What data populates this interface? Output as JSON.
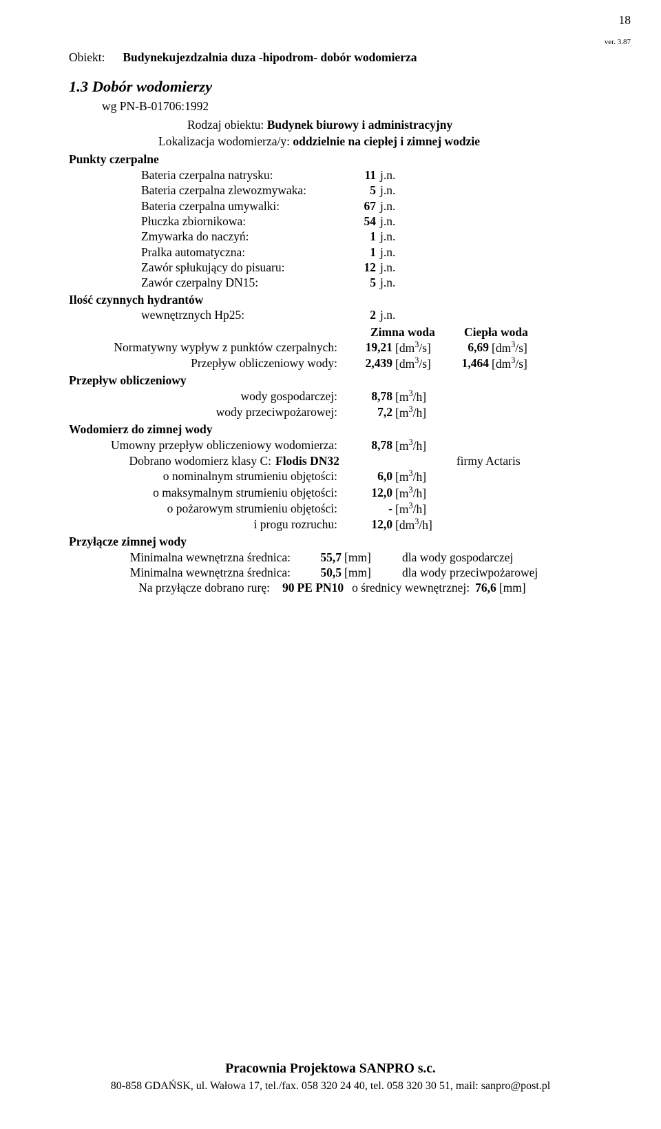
{
  "page_number": "18",
  "ver": "ver. 3.87",
  "objekt_label": "Obiekt:",
  "objekt_name": "Budynekujezdzalnia duza -hipodrom- dobór wodomierza",
  "section_title": "1.3 Dobór wodomierzy",
  "wg": "wg PN-B-01706:1992",
  "rodzaj_label": "Rodzaj obiektu:",
  "rodzaj_value": "Budynek biurowy i administracyjny",
  "lokal_label": "Lokalizacja wodomierza/y:",
  "lokal_value": "oddzielnie na ciepłej i zimnej wodzie",
  "punkty_title": "Punkty czerpalne",
  "pc": [
    {
      "label": "Bateria czerpalna natrysku:",
      "val": "11",
      "unit": "j.n."
    },
    {
      "label": "Bateria czerpalna zlewozmywaka:",
      "val": "5",
      "unit": "j.n."
    },
    {
      "label": "Bateria czerpalna umywalki:",
      "val": "67",
      "unit": "j.n."
    },
    {
      "label": "Płuczka zbiornikowa:",
      "val": "54",
      "unit": "j.n."
    },
    {
      "label": "Zmywarka do naczyń:",
      "val": "1",
      "unit": "j.n."
    },
    {
      "label": "Pralka automatyczna:",
      "val": "1",
      "unit": "j.n."
    },
    {
      "label": "Zawór spłukujący do pisuaru:",
      "val": "12",
      "unit": "j.n."
    },
    {
      "label": "Zawór czerpalny DN15:",
      "val": "5",
      "unit": "j.n."
    }
  ],
  "hydrant_title": "Ilość czynnych hydrantów",
  "hydrant_label": "wewnętrznych Hp25:",
  "hydrant_val": "2",
  "zimna": "Zimna woda",
  "ciepla": "Ciepła woda",
  "norm_label": "Normatywny wypływ z punktów czerpalnych:",
  "norm_z": "19,21",
  "norm_c": "6,69",
  "przep_label": "Przepływ obliczeniowy wody:",
  "przep_z": "2,439",
  "przep_c": "1,464",
  "unit_dm3s": "[dm³/s]",
  "po_title": "Przepływ obliczeniowy",
  "gosp_label": "wody gospodarczej:",
  "gosp_val": "8,78",
  "ppoz_label": "wody przeciwpożarowej:",
  "ppoz_val": "7,2",
  "unit_m3h": "[m³/h]",
  "wodz_title": "Wodomierz do zimnej wody",
  "umow_label": "Umowny przepływ obliczeniowy wodomierza:",
  "umow_val": "8,78",
  "dobr_label": "Dobrano wodomierz klasy C:",
  "dobr_class": "Flodis DN32",
  "dobr_firm": "firmy Actaris",
  "nom_label": "o nominalnym strumieniu objętości:",
  "nom_val": "6,0",
  "max_label": "o maksymalnym strumieniu objętości:",
  "max_val": "12,0",
  "poz_label": "o pożarowym strumieniu objętości:",
  "poz_val": "-",
  "prog_label": "i progu rozruchu:",
  "prog_val": "12,0",
  "unit_dm3h": "[dm³/h]",
  "przyl_title": "Przyłącze zimnej wody",
  "min1_label": "Minimalna wewnętrzna średnica:",
  "min1_val": "55,7",
  "min1_note": "dla wody gospodarczej",
  "min2_label": "Minimalna wewnętrzna średnica:",
  "min2_val": "50,5",
  "min2_note": "dla wody przeciwpożarowej",
  "unit_mm": "[mm]",
  "na_label": "Na przyłącze dobrano rurę:",
  "na_v1": "90",
  "na_mid": "PE PN10",
  "na_mid2": "o średnicy wewnętrznej:",
  "na_v2": "76,6",
  "footer_firm": "Pracownia Projektowa SANPRO s.c.",
  "footer_addr": "80-858 GDAŃSK, ul. Wałowa 17, tel./fax. 058 320 24 40, tel. 058 320 30 51, mail: sanpro@post.pl"
}
